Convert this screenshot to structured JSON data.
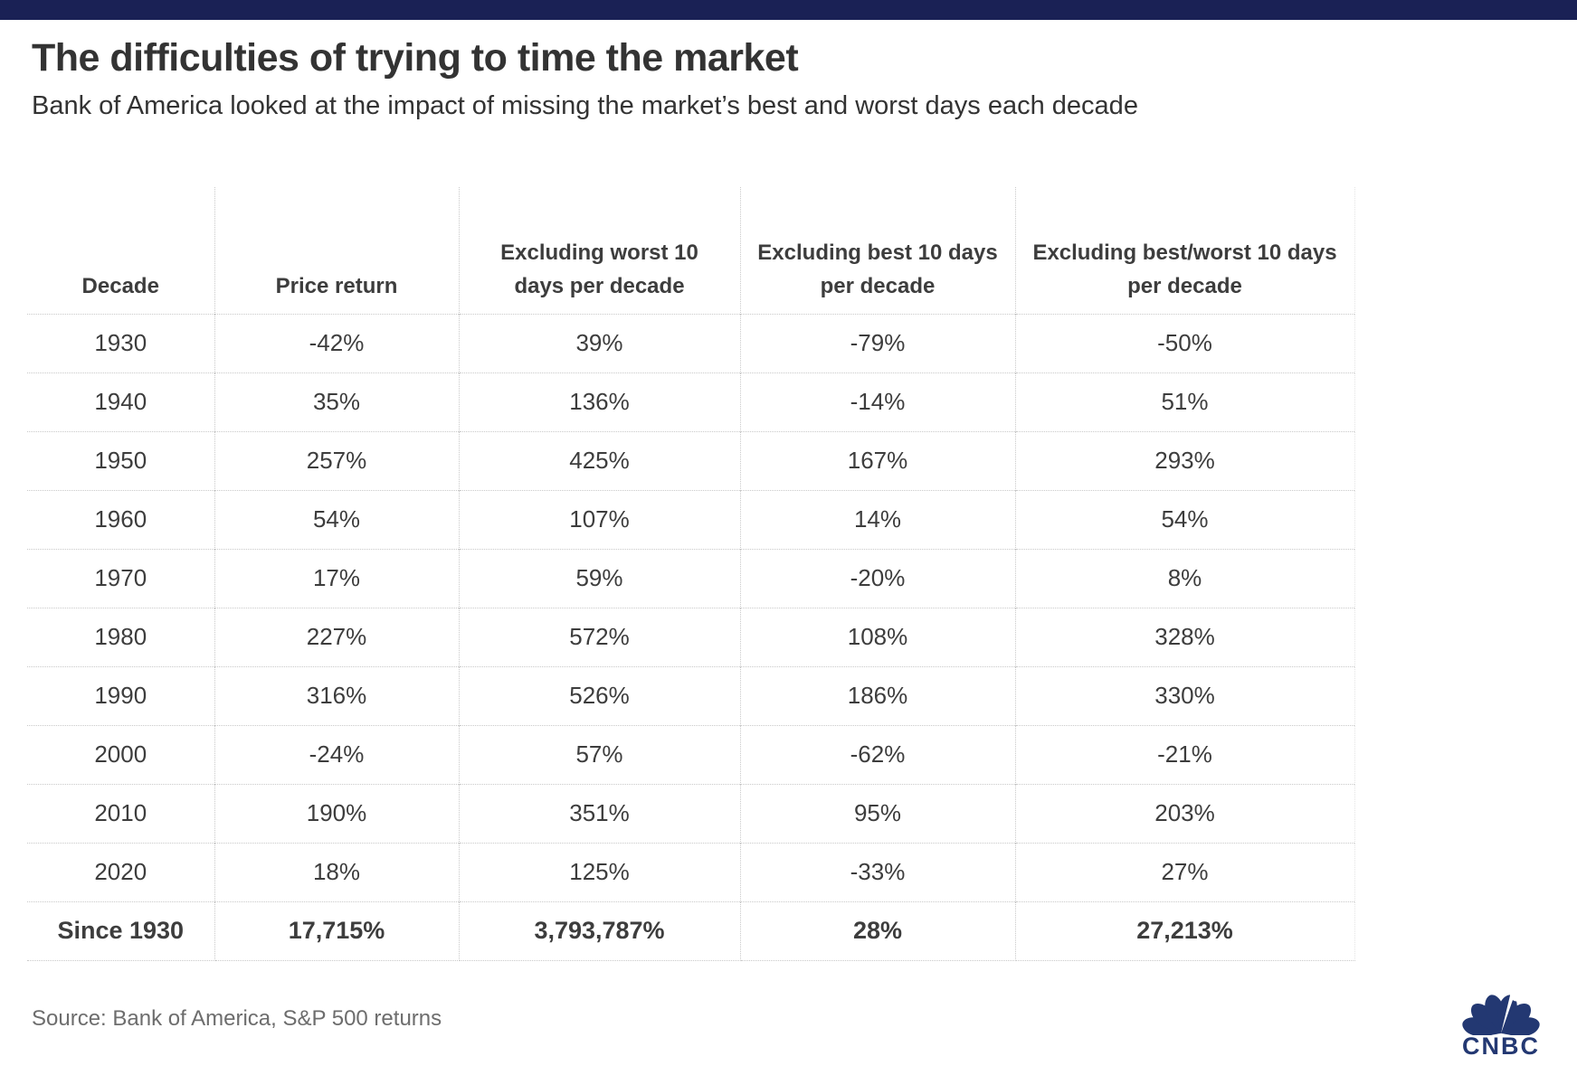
{
  "colors": {
    "topbar_navy": "#1a2155",
    "logo_navy": "#233872",
    "text_dark": "#3d3d3d",
    "grid_dotted": "#c9c9c9"
  },
  "chart_data": {
    "type": "table",
    "title": "The difficulties of trying to time the market",
    "subtitle": "Bank of America looked at the impact of missing the market’s best and worst days each decade",
    "columns": [
      "Decade",
      "Price return",
      "Excluding worst 10 days per decade",
      "Excluding best 10 days per decade",
      "Excluding best/worst 10 days per decade"
    ],
    "rows": [
      [
        "1930",
        "-42%",
        "39%",
        "-79%",
        "-50%"
      ],
      [
        "1940",
        "35%",
        "136%",
        "-14%",
        "51%"
      ],
      [
        "1950",
        "257%",
        "425%",
        "167%",
        "293%"
      ],
      [
        "1960",
        "54%",
        "107%",
        "14%",
        "54%"
      ],
      [
        "1970",
        "17%",
        "59%",
        "-20%",
        "8%"
      ],
      [
        "1980",
        "227%",
        "572%",
        "108%",
        "328%"
      ],
      [
        "1990",
        "316%",
        "526%",
        "186%",
        "330%"
      ],
      [
        "2000",
        "-24%",
        "57%",
        "-62%",
        "-21%"
      ],
      [
        "2010",
        "190%",
        "351%",
        "95%",
        "203%"
      ],
      [
        "2020",
        "18%",
        "125%",
        "-33%",
        "27%"
      ]
    ],
    "total_row": [
      "Since 1930",
      "17,715%",
      "3,793,787%",
      "28%",
      "27,213%"
    ],
    "source": "Source: Bank of America, S&P 500 returns",
    "layout": {
      "grid": "dotted",
      "header_position": "top",
      "totals": "bottom"
    }
  },
  "footer": {
    "logo_text": "CNBC"
  }
}
